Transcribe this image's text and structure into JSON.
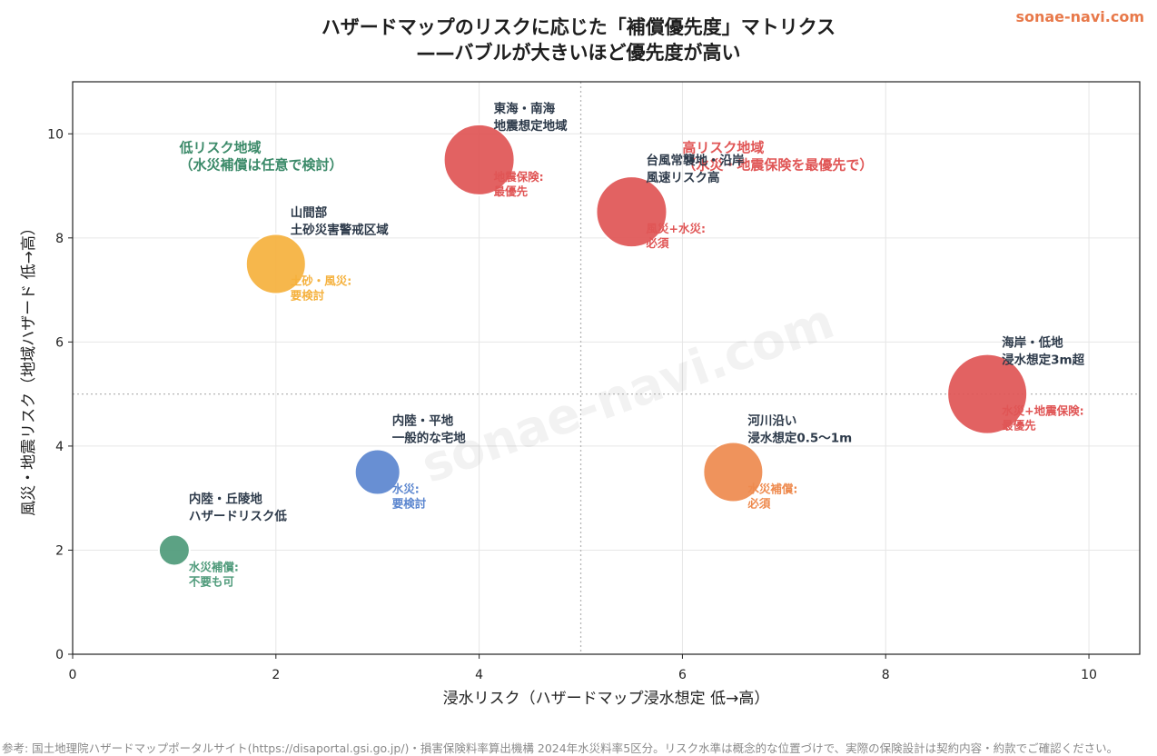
{
  "brand": "sonae-navi.com",
  "source_note": "参考: 国土地理院ハザードマップポータルサイト(https://disaportal.gsi.go.jp/)・損害保険料率算出機構 2024年水災料率5区分。リスク水準は概念的な位置づけで、実際の保険設計は契約内容・約款でご確認ください。",
  "colors": {
    "red": "#e05555",
    "orange": "#ee8a4e",
    "yellow": "#f5b13d",
    "blue": "#5b86cf",
    "green": "#4e9a7a",
    "text": "#2d3a4a"
  },
  "chart_data": {
    "type": "scatter",
    "title_lines": [
      "ハザードマップのリスクに応じた「補償優先度」マトリクス",
      "——バブルが大きいほど優先度が高い"
    ],
    "xlabel": "浸水リスク（ハザードマップ浸水想定 低→高）",
    "ylabel": "風災・地震リスク（地域ハザード 低→高）",
    "xlim": [
      0,
      10.5
    ],
    "ylim": [
      0,
      11
    ],
    "xticks": [
      0,
      2,
      4,
      6,
      8,
      10
    ],
    "yticks": [
      0,
      2,
      4,
      6,
      8,
      10
    ],
    "grid": true,
    "threshold_lines": {
      "x": 5,
      "y": 5
    },
    "watermark": "sonae-navi.com",
    "quadrant_labels": [
      {
        "lines": [
          "低リスク地域",
          "（水災補償は任意で検討）"
        ],
        "x": 1.05,
        "y": 9.65,
        "color": "#3b8a69"
      },
      {
        "lines": [
          "高リスク地域",
          "（水災・地震保険を最優先で）"
        ],
        "x": 6.0,
        "y": 9.65,
        "color": "#e05555"
      }
    ],
    "points": [
      {
        "x": 1.0,
        "y": 2.0,
        "size": 1,
        "color": "#4e9a7a",
        "name_lines": [
          "内陸・丘陵地",
          "ハザードリスク低"
        ],
        "note_lines": [
          "水災補償:",
          "不要も可"
        ]
      },
      {
        "x": 3.0,
        "y": 3.5,
        "size": 2,
        "color": "#5b86cf",
        "name_lines": [
          "内陸・平地",
          "一般的な宅地"
        ],
        "note_lines": [
          "水災:",
          "要検討"
        ]
      },
      {
        "x": 2.0,
        "y": 7.5,
        "size": 3,
        "color": "#f5b13d",
        "name_lines": [
          "山間部",
          "土砂災害警戒区域"
        ],
        "note_lines": [
          "土砂・風災:",
          "要検討"
        ]
      },
      {
        "x": 4.0,
        "y": 9.5,
        "size": 4,
        "color": "#e05555",
        "name_lines": [
          "東海・南海",
          "地震想定地域"
        ],
        "note_lines": [
          "地震保険:",
          "最優先"
        ]
      },
      {
        "x": 5.5,
        "y": 8.5,
        "size": 4,
        "color": "#e05555",
        "name_lines": [
          "台風常襲地・沿岸",
          "風速リスク高"
        ],
        "note_lines": [
          "風災+水災:",
          "必須"
        ]
      },
      {
        "x": 6.5,
        "y": 3.5,
        "size": 3,
        "color": "#ee8a4e",
        "name_lines": [
          "河川沿い",
          "浸水想定0.5〜1m"
        ],
        "note_lines": [
          "水災補償:",
          "必須"
        ]
      },
      {
        "x": 9.0,
        "y": 5.0,
        "size": 5,
        "color": "#e05555",
        "name_lines": [
          "海岸・低地",
          "浸水想定3m超"
        ],
        "note_lines": [
          "水災+地震保険:",
          "最優先"
        ]
      }
    ]
  }
}
